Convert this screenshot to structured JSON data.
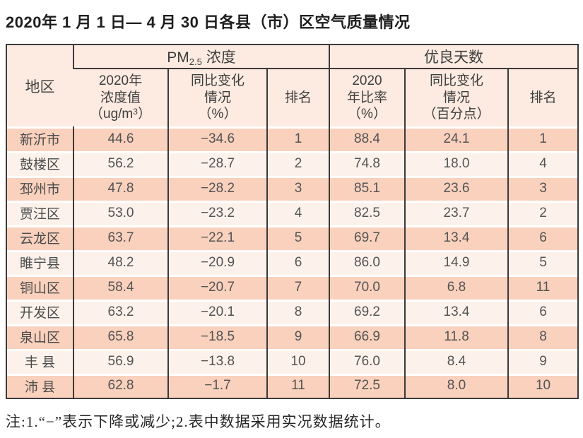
{
  "title": "2020年 1 月 1 日— 4 月 30 日各县（市）区空气质量情况",
  "note": "注:1.“−”表示下降或减少;2.表中数据采用实况数据统计。",
  "colors": {
    "row-dark": "#f9d1bd",
    "row-light": "#fdf2eb",
    "header-bg": "#fdebe1",
    "border-dark": "#3b3b3b",
    "cell-text": "#545454",
    "header-text": "#3e3e3e",
    "title-text": "#1e1e1e",
    "note-text": "#262626"
  },
  "table": {
    "header": {
      "region": "地区",
      "pm_group": {
        "prefix": "PM",
        "sub": "2.5",
        "suffix": " 浓度"
      },
      "good_days_group": "优良天数",
      "pm_value": {
        "line1": "2020年",
        "line2": "浓度值",
        "line3_prefix": "（ug/m",
        "line3_sup": "3",
        "line3_suffix": "）"
      },
      "pm_change": {
        "line1": "同比变化",
        "line2": "情况",
        "line3": "（%）"
      },
      "pm_rank": "排名",
      "gd_rate": {
        "line1": "2020",
        "line2": "年比率",
        "line3": "（%）"
      },
      "gd_change": {
        "line1": "同比变化",
        "line2": "情况",
        "line3": "（百分点）"
      },
      "gd_rank": "排名"
    },
    "rows": [
      {
        "region": "新沂市",
        "pm_value": "44.6",
        "pm_change": "−34.6",
        "pm_rank": "1",
        "gd_rate": "88.4",
        "gd_change": "24.1",
        "gd_rank": "1"
      },
      {
        "region": "鼓楼区",
        "pm_value": "56.2",
        "pm_change": "−28.7",
        "pm_rank": "2",
        "gd_rate": "74.8",
        "gd_change": "18.0",
        "gd_rank": "4"
      },
      {
        "region": "邳州市",
        "pm_value": "47.8",
        "pm_change": "−28.2",
        "pm_rank": "3",
        "gd_rate": "85.1",
        "gd_change": "23.6",
        "gd_rank": "3"
      },
      {
        "region": "贾汪区",
        "pm_value": "53.0",
        "pm_change": "−23.2",
        "pm_rank": "4",
        "gd_rate": "82.5",
        "gd_change": "23.7",
        "gd_rank": "2"
      },
      {
        "region": "云龙区",
        "pm_value": "63.7",
        "pm_change": "−22.1",
        "pm_rank": "5",
        "gd_rate": "69.7",
        "gd_change": "13.4",
        "gd_rank": "6"
      },
      {
        "region": "睢宁县",
        "pm_value": "48.2",
        "pm_change": "−20.9",
        "pm_rank": "6",
        "gd_rate": "86.0",
        "gd_change": "14.9",
        "gd_rank": "5"
      },
      {
        "region": "铜山区",
        "pm_value": "58.4",
        "pm_change": "−20.7",
        "pm_rank": "7",
        "gd_rate": "70.0",
        "gd_change": "6.8",
        "gd_rank": "11"
      },
      {
        "region": "开发区",
        "pm_value": "63.2",
        "pm_change": "−20.1",
        "pm_rank": "8",
        "gd_rate": "69.2",
        "gd_change": "13.4",
        "gd_rank": "6"
      },
      {
        "region": "泉山区",
        "pm_value": "65.8",
        "pm_change": "−18.5",
        "pm_rank": "9",
        "gd_rate": "66.9",
        "gd_change": "11.8",
        "gd_rank": "8"
      },
      {
        "region": "丰 县",
        "pm_value": "56.9",
        "pm_change": "−13.8",
        "pm_rank": "10",
        "gd_rate": "76.0",
        "gd_change": "8.4",
        "gd_rank": "9"
      },
      {
        "region": "沛 县",
        "pm_value": "62.8",
        "pm_change": "−1.7",
        "pm_rank": "11",
        "gd_rate": "72.5",
        "gd_change": "8.0",
        "gd_rank": "10"
      }
    ]
  }
}
